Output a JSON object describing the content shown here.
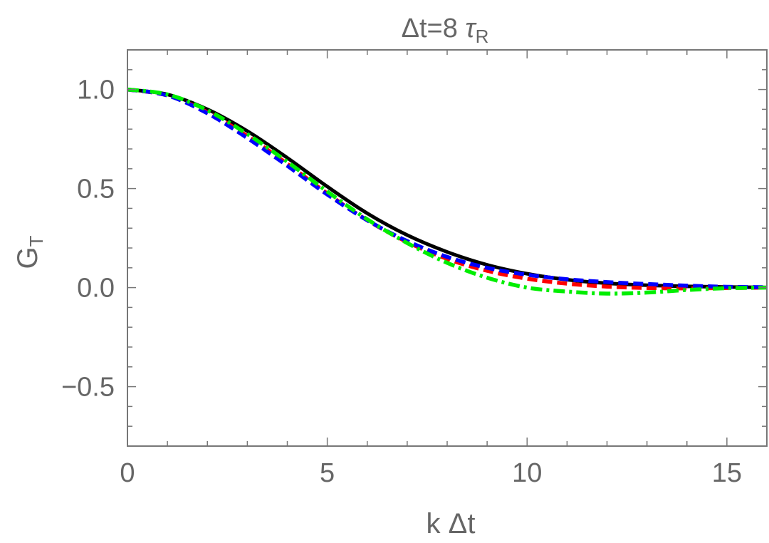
{
  "chart_data": {
    "type": "line",
    "title": "Δt=8 τR",
    "title_parts": {
      "main": "Δt=8 ",
      "symbol": "τ",
      "subscript": "R"
    },
    "xlabel": "k Δt",
    "ylabel_parts": {
      "main": "G",
      "subscript": "T"
    },
    "xlim": [
      0,
      16
    ],
    "ylim": [
      -0.8,
      1.2
    ],
    "grid": false,
    "xticks": [
      0,
      5,
      10,
      15
    ],
    "xtick_labels": [
      "0",
      "5",
      "10",
      "15"
    ],
    "yticks": [
      -0.5,
      0.0,
      0.5,
      1.0
    ],
    "ytick_labels": [
      "−0.5",
      "0.0",
      "0.5",
      "1.0"
    ],
    "x_minor_step": 1,
    "y_minor_step": 0.1,
    "x": [
      0,
      1,
      2,
      3,
      4,
      5,
      6,
      7,
      8,
      9,
      10,
      11,
      12,
      13,
      14,
      15,
      16
    ],
    "series": [
      {
        "color": "#000000",
        "style": "solid",
        "values": [
          1.0,
          0.975,
          0.9,
          0.79,
          0.655,
          0.51,
          0.375,
          0.265,
          0.18,
          0.115,
          0.07,
          0.04,
          0.022,
          0.012,
          0.006,
          0.003,
          0.001
        ]
      },
      {
        "color": "#ff0000",
        "style": "dashed",
        "values": [
          1.0,
          0.97,
          0.885,
          0.765,
          0.625,
          0.475,
          0.34,
          0.23,
          0.145,
          0.085,
          0.045,
          0.02,
          0.005,
          -0.002,
          -0.004,
          -0.002,
          0.0
        ]
      },
      {
        "color": "#0000ff",
        "style": "dashed",
        "values": [
          1.0,
          0.97,
          0.88,
          0.755,
          0.615,
          0.47,
          0.34,
          0.235,
          0.155,
          0.1,
          0.065,
          0.042,
          0.028,
          0.018,
          0.01,
          0.004,
          0.002
        ]
      },
      {
        "color": "#00ee00",
        "style": "dashdot",
        "values": [
          1.0,
          0.975,
          0.895,
          0.775,
          0.635,
          0.485,
          0.345,
          0.225,
          0.125,
          0.05,
          0.0,
          -0.02,
          -0.03,
          -0.025,
          -0.012,
          -0.003,
          0.0
        ]
      }
    ]
  }
}
